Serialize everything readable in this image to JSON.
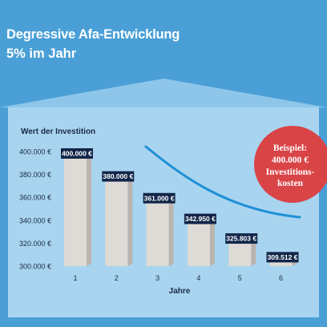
{
  "header": {
    "title": "Degressive Afa-Entwicklung",
    "subtitle": "5% im Jahr"
  },
  "colors": {
    "background": "#4a9fd6",
    "panel": "#a8d4f0",
    "roof": "#8ec6ea",
    "bar": "#dedad5",
    "bar_shadow": "#b9b4ae",
    "label_bg": "#12264a",
    "curve": "#1f8fd4",
    "badge": "#d94447"
  },
  "badge": {
    "lines": [
      "Beispiel:",
      "400.000 €",
      "Investitions-",
      "kosten"
    ]
  },
  "chart_data": {
    "type": "bar",
    "ylabel": "Wert der Investition",
    "xlabel": "Jahre",
    "categories": [
      "1",
      "2",
      "3",
      "4",
      "5",
      "6"
    ],
    "values": [
      400000,
      380000,
      361000,
      342950,
      325803,
      309512
    ],
    "value_labels": [
      "400.000 €",
      "380.000 €",
      "361.000 €",
      "342.950 €",
      "325.803 €",
      "309.512 €"
    ],
    "yticks": [
      300000,
      320000,
      340000,
      360000,
      380000,
      400000
    ],
    "ytick_labels": [
      "300.000 €",
      "320.000 €",
      "340.000 €",
      "360.000 €",
      "380.000 €",
      "400.000 €"
    ],
    "ylim": [
      300000,
      400000
    ],
    "trend_curve": true
  }
}
